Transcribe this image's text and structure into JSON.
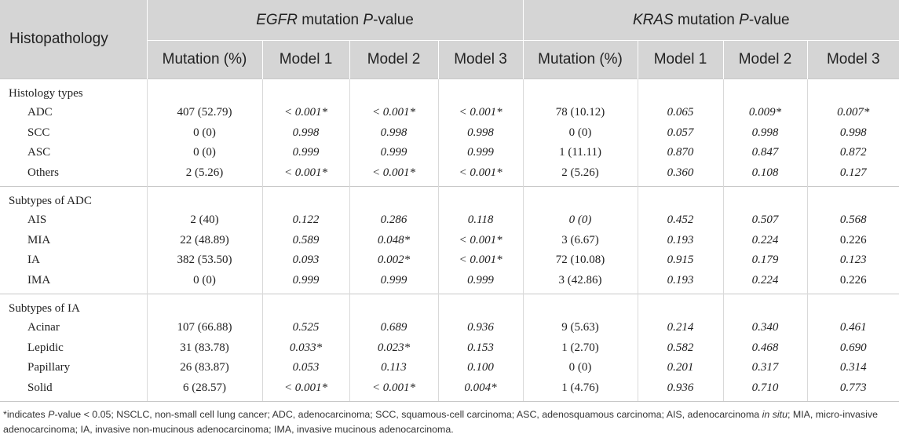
{
  "header": {
    "histopathology": "Histopathology",
    "egfr": {
      "gene": "EGFR",
      "mid": " mutation ",
      "p": "P",
      "suffix": "-value"
    },
    "kras": {
      "gene": "KRAS",
      "mid": " mutation ",
      "p": "P",
      "suffix": "-value"
    },
    "columns": [
      "Mutation (%)",
      "Model 1",
      "Model 2",
      "Model 3",
      "Mutation (%)",
      "Model 1",
      "Model 2",
      "Model 3"
    ]
  },
  "sections": [
    {
      "title": "Histology types",
      "rows": [
        {
          "label": "ADC",
          "cells": [
            "407 (52.79)",
            "< 0.001*",
            "< 0.001*",
            "< 0.001*",
            "78 (10.12)",
            "0.065",
            "0.009*",
            "0.007*"
          ]
        },
        {
          "label": "SCC",
          "cells": [
            "0 (0)",
            "0.998",
            "0.998",
            "0.998",
            "0 (0)",
            "0.057",
            "0.998",
            "0.998"
          ]
        },
        {
          "label": "ASC",
          "cells": [
            "0 (0)",
            "0.999",
            "0.999",
            "0.999",
            "1 (11.11)",
            "0.870",
            "0.847",
            "0.872"
          ]
        },
        {
          "label": "Others",
          "cells": [
            "2 (5.26)",
            "< 0.001*",
            "< 0.001*",
            "< 0.001*",
            "2 (5.26)",
            "0.360",
            "0.108",
            "0.127"
          ]
        }
      ]
    },
    {
      "title": "Subtypes of ADC",
      "rows": [
        {
          "label": "AIS",
          "cells": [
            "2 (40)",
            "0.122",
            "0.286",
            "0.118",
            "0 (0)",
            "0.452",
            "0.507",
            "0.568"
          ]
        },
        {
          "label": "MIA",
          "cells": [
            "22 (48.89)",
            "0.589",
            "0.048*",
            "< 0.001*",
            "3 (6.67)",
            "0.193",
            "0.224",
            "0.226"
          ]
        },
        {
          "label": "IA",
          "cells": [
            "382 (53.50)",
            "0.093",
            "0.002*",
            "< 0.001*",
            "72 (10.08)",
            "0.915",
            "0.179",
            "0.123"
          ]
        },
        {
          "label": "IMA",
          "cells": [
            "0 (0)",
            "0.999",
            "0.999",
            "0.999",
            "3 (42.86)",
            "0.193",
            "0.224",
            "0.226"
          ]
        }
      ]
    },
    {
      "title": "Subtypes of IA",
      "rows": [
        {
          "label": "Acinar",
          "cells": [
            "107 (66.88)",
            "0.525",
            "0.689",
            "0.936",
            "9 (5.63)",
            "0.214",
            "0.340",
            "0.461"
          ]
        },
        {
          "label": "Lepidic",
          "cells": [
            "31 (83.78)",
            "0.033*",
            "0.023*",
            "0.153",
            "1 (2.70)",
            "0.582",
            "0.468",
            "0.690"
          ]
        },
        {
          "label": "Papillary",
          "cells": [
            "26 (83.87)",
            "0.053",
            "0.113",
            "0.100",
            "0 (0)",
            "0.201",
            "0.317",
            "0.314"
          ]
        },
        {
          "label": "Solid",
          "cells": [
            "6 (28.57)",
            "< 0.001*",
            "< 0.001*",
            "0.004*",
            "1 (4.76)",
            "0.936",
            "0.710",
            "0.773"
          ]
        }
      ]
    }
  ],
  "italic_cells": [
    [
      [
        false,
        true,
        true,
        true,
        false,
        true,
        true,
        true
      ],
      [
        false,
        true,
        true,
        true,
        false,
        true,
        true,
        true
      ],
      [
        false,
        true,
        true,
        true,
        false,
        true,
        true,
        true
      ],
      [
        false,
        true,
        true,
        true,
        false,
        true,
        true,
        true
      ]
    ],
    [
      [
        false,
        true,
        true,
        true,
        true,
        true,
        true,
        true
      ],
      [
        false,
        true,
        true,
        true,
        false,
        true,
        true,
        false
      ],
      [
        false,
        true,
        true,
        true,
        false,
        true,
        true,
        true
      ],
      [
        false,
        true,
        true,
        true,
        false,
        true,
        true,
        false
      ]
    ],
    [
      [
        false,
        true,
        true,
        true,
        false,
        true,
        true,
        true
      ],
      [
        false,
        true,
        true,
        true,
        false,
        true,
        true,
        true
      ],
      [
        false,
        true,
        true,
        true,
        false,
        true,
        true,
        true
      ],
      [
        false,
        true,
        true,
        true,
        false,
        true,
        true,
        true
      ]
    ]
  ],
  "footnote": {
    "part1": "*indicates ",
    "p": "P",
    "part2": "-value < 0.05; NSCLC, non-small cell lung cancer; ADC, adenocarcinoma; SCC, squamous-cell carcinoma; ASC, adenosquamous carcinoma; AIS, adenocarcinoma ",
    "insitu": "in situ",
    "part3": "; MIA, micro-invasive adenocarcinoma; IA, invasive non-mucinous adenocarcinoma; IMA, invasive mucinous adenocarcinoma."
  }
}
